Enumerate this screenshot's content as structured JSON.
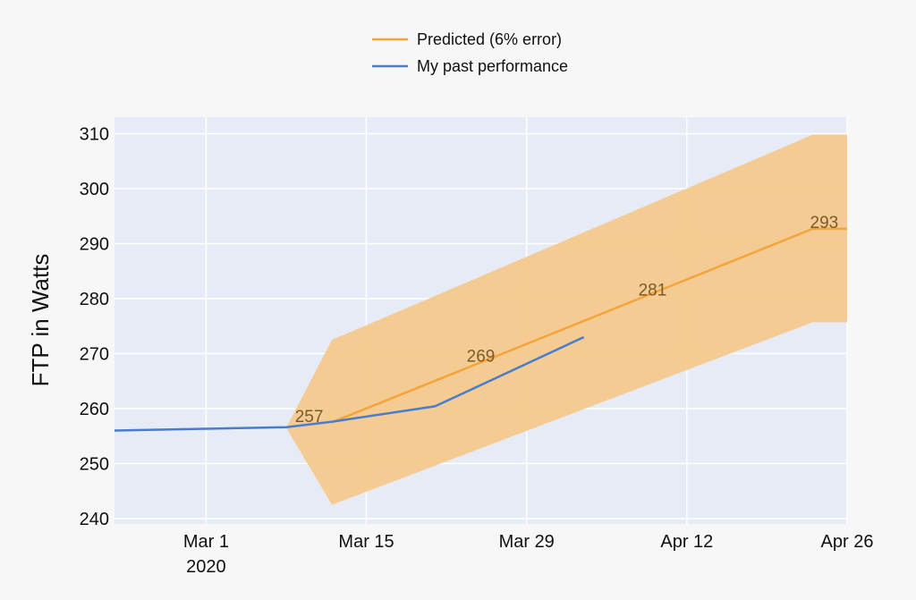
{
  "chart_data": {
    "type": "line",
    "title": "",
    "xlabel": "",
    "ylabel": "FTP in Watts",
    "ylim": [
      239,
      313
    ],
    "xlim": [
      "2020-02-22",
      "2020-04-26"
    ],
    "x_ticks": [
      {
        "date": "2020-03-01",
        "label": "Mar 1",
        "sublabel": "2020"
      },
      {
        "date": "2020-03-15",
        "label": "Mar 15"
      },
      {
        "date": "2020-03-29",
        "label": "Mar 29"
      },
      {
        "date": "2020-04-12",
        "label": "Apr 12"
      },
      {
        "date": "2020-04-26",
        "label": "Apr 26"
      }
    ],
    "y_ticks": [
      240,
      250,
      260,
      270,
      280,
      290,
      300,
      310
    ],
    "grid": true,
    "legend": "top-center",
    "series": [
      {
        "name": "Predicted (6% error)",
        "color": "#f4a43a",
        "points": [
          {
            "x": "2020-03-12",
            "y": 257.5,
            "label": "257"
          },
          {
            "x": "2020-04-23",
            "y": 292.7,
            "label": "293"
          },
          {
            "x": "2020-04-26",
            "y": 292.7
          }
        ],
        "band": {
          "color": "#f4c98c",
          "upper": [
            {
              "x": "2020-03-08",
              "y": 256.5
            },
            {
              "x": "2020-03-12",
              "y": 272.5
            },
            {
              "x": "2020-04-23",
              "y": 309.8
            },
            {
              "x": "2020-04-26",
              "y": 309.8
            }
          ],
          "lower": [
            {
              "x": "2020-03-08",
              "y": 256.5
            },
            {
              "x": "2020-03-12",
              "y": 242.5
            },
            {
              "x": "2020-04-23",
              "y": 275.7
            },
            {
              "x": "2020-04-26",
              "y": 275.7
            }
          ]
        },
        "annotations": [
          {
            "x": "2020-03-10",
            "y": 258.5,
            "label": "257"
          },
          {
            "x": "2020-03-25",
            "y": 269.5,
            "label": "269"
          },
          {
            "x": "2020-04-09",
            "y": 281.5,
            "label": "281"
          },
          {
            "x": "2020-04-24",
            "y": 293.8,
            "label": "293"
          }
        ]
      },
      {
        "name": "My past performance",
        "color": "#4a7ccc",
        "points": [
          {
            "x": "2020-02-22",
            "y": 256.0
          },
          {
            "x": "2020-03-08",
            "y": 256.6
          },
          {
            "x": "2020-03-12",
            "y": 257.6
          },
          {
            "x": "2020-03-21",
            "y": 260.4
          },
          {
            "x": "2020-04-03",
            "y": 273.0
          }
        ]
      }
    ]
  }
}
